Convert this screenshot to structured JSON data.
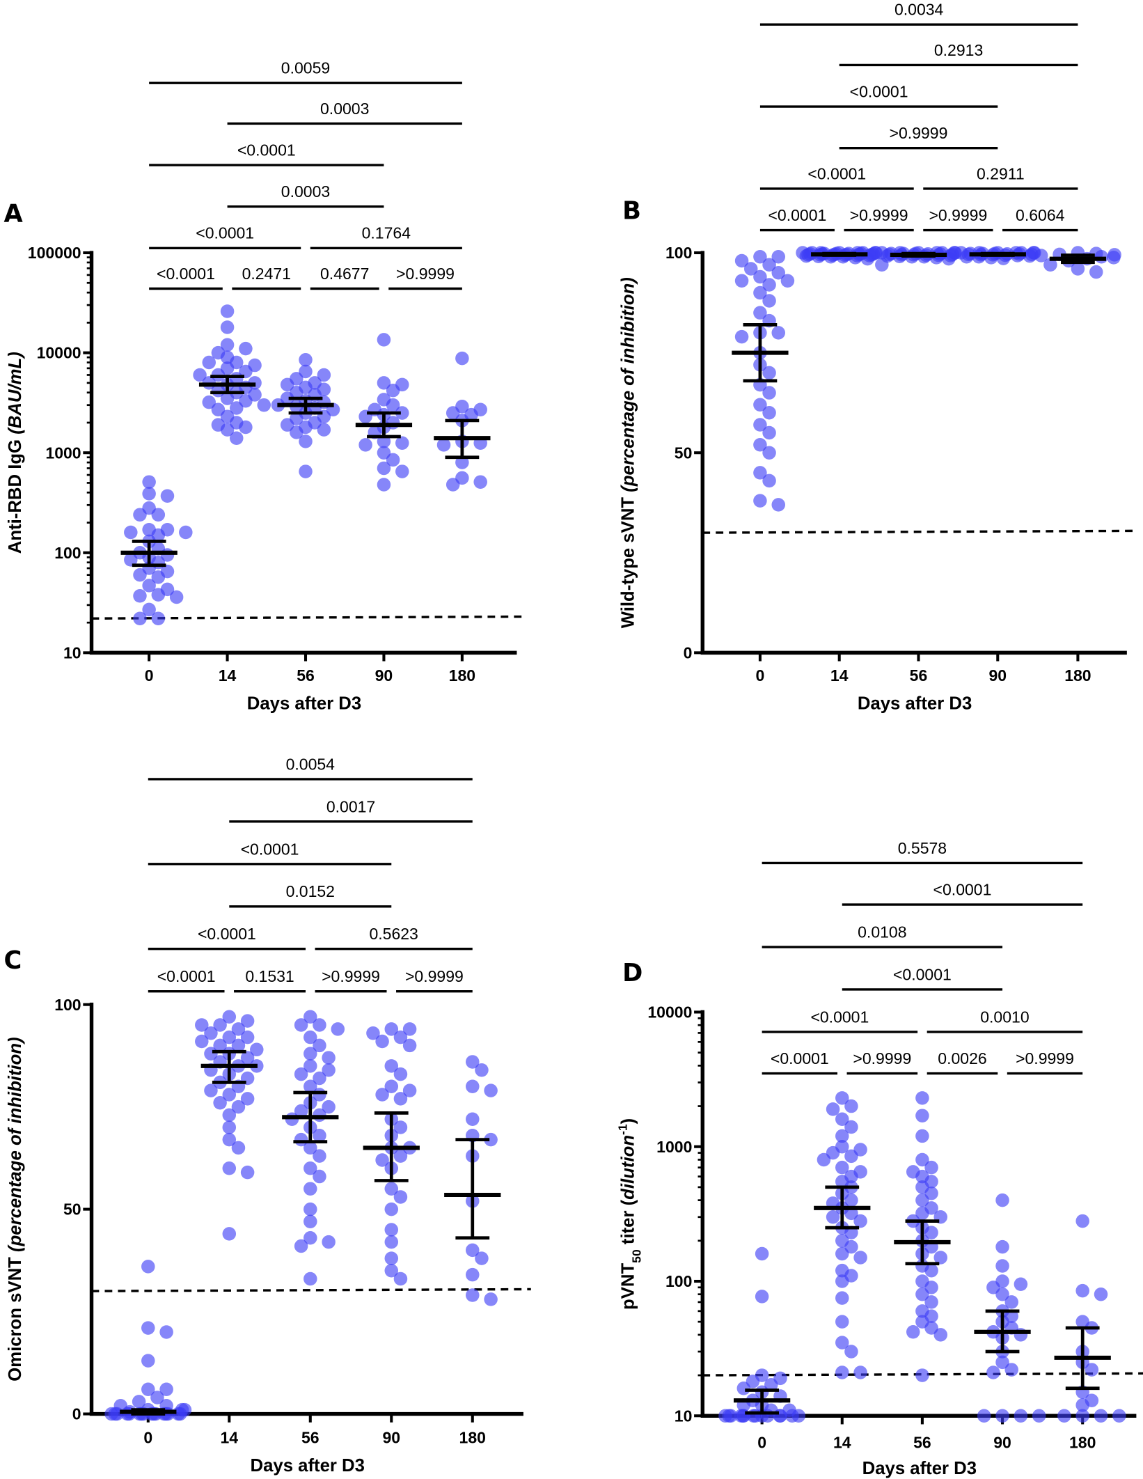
{
  "chart_data": [
    {
      "panel": "A",
      "type": "scatter",
      "xlabel": "Days after D3",
      "ylabel_parts": [
        {
          "text": "Anti-RBD IgG ",
          "style": "normal"
        },
        {
          "text": "(BAU/mL)",
          "style": "italic"
        }
      ],
      "yscale": "log",
      "ylim": [
        10,
        100000
      ],
      "yticks": [
        "10",
        "100",
        "1000",
        "10000",
        "100000"
      ],
      "categories": [
        "0",
        "14",
        "56",
        "90",
        "180"
      ],
      "lod": 22,
      "point_color": "#3b3bf5",
      "groups": [
        {
          "category": "0",
          "mean": 100,
          "ci": [
            75,
            130
          ],
          "values": [
            510,
            390,
            370,
            280,
            240,
            240,
            170,
            170,
            160,
            160,
            150,
            130,
            110,
            100,
            95,
            90,
            85,
            80,
            70,
            65,
            60,
            57,
            47,
            43,
            38,
            37,
            36,
            27,
            22,
            22
          ]
        },
        {
          "category": "14",
          "mean": 4800,
          "ci": [
            4000,
            5800
          ],
          "values": [
            26000,
            18000,
            12000,
            11000,
            10000,
            9000,
            8000,
            8000,
            7500,
            7000,
            6500,
            6000,
            6000,
            5500,
            5000,
            5000,
            4800,
            4500,
            4200,
            4000,
            3800,
            3500,
            3300,
            3200,
            3000,
            2800,
            2700,
            2300,
            2000,
            1900,
            1800,
            1700,
            1400
          ]
        },
        {
          "category": "56",
          "mean": 3000,
          "ci": [
            2500,
            3500
          ],
          "values": [
            8500,
            6500,
            6000,
            5500,
            5000,
            4800,
            4500,
            4300,
            4000,
            3800,
            3500,
            3300,
            3200,
            3000,
            2900,
            2800,
            2700,
            2500,
            2300,
            2200,
            2000,
            1900,
            1800,
            1700,
            1600,
            1300,
            650
          ]
        },
        {
          "category": "90",
          "mean": 1900,
          "ci": [
            1450,
            2500
          ],
          "values": [
            13500,
            5000,
            4800,
            4200,
            3400,
            3000,
            2700,
            2500,
            2400,
            2300,
            2000,
            1800,
            1600,
            1300,
            1250,
            1200,
            1000,
            850,
            700,
            650,
            480
          ]
        },
        {
          "category": "180",
          "mean": 1400,
          "ci": [
            900,
            2100
          ],
          "values": [
            8800,
            2900,
            2700,
            2500,
            2400,
            2100,
            1300,
            1250,
            1200,
            800,
            560,
            510,
            480
          ]
        }
      ],
      "comparisons": [
        [
          {
            "from": 0,
            "to": 4,
            "p": "0.0059"
          }
        ],
        [
          {
            "from": 1,
            "to": 4,
            "p": "0.0003"
          }
        ],
        [
          {
            "from": 0,
            "to": 3,
            "p": "<0.0001"
          }
        ],
        [
          {
            "from": 1,
            "to": 3,
            "p": "0.0003"
          }
        ],
        [
          {
            "from": 0,
            "to": 2,
            "p": "<0.0001"
          },
          {
            "from": 2,
            "to": 4,
            "p": "0.1764"
          }
        ],
        [
          {
            "from": 0,
            "to": 1,
            "p": "<0.0001"
          },
          {
            "from": 1,
            "to": 2,
            "p": "0.2471"
          },
          {
            "from": 2,
            "to": 3,
            "p": "0.4677"
          },
          {
            "from": 3,
            "to": 4,
            "p": ">0.9999"
          }
        ]
      ]
    },
    {
      "panel": "B",
      "type": "scatter",
      "xlabel": "Days after D3",
      "ylabel_parts": [
        {
          "text": "Wild-type sVNT ",
          "style": "normal"
        },
        {
          "text": "(percentage of inhibition)",
          "style": "italic"
        }
      ],
      "yscale": "linear",
      "ylim": [
        0,
        100
      ],
      "yticks": [
        "0",
        "50",
        "100"
      ],
      "categories": [
        "0",
        "14",
        "56",
        "90",
        "180"
      ],
      "lod": 30,
      "point_color": "#3b3bf5",
      "groups": [
        {
          "category": "0",
          "mean": 75,
          "ci": [
            68,
            82
          ],
          "values": [
            99,
            99,
            98,
            97,
            96,
            95,
            94,
            93,
            93,
            92,
            90,
            88,
            85,
            83,
            80,
            80,
            79,
            75,
            72,
            70,
            67,
            65,
            62,
            60,
            57,
            55,
            52,
            50,
            45,
            43,
            38,
            37
          ]
        },
        {
          "category": "14",
          "mean": 99.6,
          "ci": [
            99.4,
            99.8
          ],
          "values": [
            100,
            100,
            100,
            100,
            100,
            100,
            100,
            100,
            99.8,
            99.8,
            99.8,
            99.8,
            99.7,
            99.7,
            99.7,
            99.6,
            99.6,
            99.6,
            99.5,
            99.5,
            99.5,
            99.4,
            99.4,
            99.3,
            99.3,
            99.2,
            99.1,
            99,
            99,
            98.8,
            98.5
          ]
        },
        {
          "category": "56",
          "mean": 99.5,
          "ci": [
            99.2,
            99.8
          ],
          "values": [
            100,
            100,
            100,
            100,
            100,
            100,
            100,
            99.8,
            99.8,
            99.8,
            99.7,
            99.7,
            99.6,
            99.6,
            99.5,
            99.5,
            99.4,
            99.4,
            99.3,
            99.2,
            99.1,
            99,
            99,
            98.8,
            98.5,
            97
          ]
        },
        {
          "category": "90",
          "mean": 99.6,
          "ci": [
            99.4,
            99.8
          ],
          "values": [
            100,
            100,
            100,
            100,
            100,
            100,
            100,
            99.8,
            99.8,
            99.8,
            99.7,
            99.7,
            99.6,
            99.6,
            99.5,
            99.5,
            99.4,
            99.3,
            99.2,
            99,
            99,
            98.8,
            98.6
          ]
        },
        {
          "category": "180",
          "mean": 98.5,
          "ci": [
            97.6,
            99.4
          ],
          "values": [
            100,
            99.8,
            99.6,
            99.5,
            99.3,
            99,
            98.8,
            98.5,
            98,
            97,
            96,
            95.2
          ]
        }
      ],
      "comparisons": [
        [
          {
            "from": 0,
            "to": 4,
            "p": "0.0034"
          }
        ],
        [
          {
            "from": 1,
            "to": 4,
            "p": "0.2913"
          }
        ],
        [
          {
            "from": 0,
            "to": 3,
            "p": "<0.0001"
          }
        ],
        [
          {
            "from": 1,
            "to": 3,
            "p": ">0.9999"
          }
        ],
        [
          {
            "from": 0,
            "to": 2,
            "p": "<0.0001"
          },
          {
            "from": 2,
            "to": 4,
            "p": "0.2911"
          }
        ],
        [
          {
            "from": 0,
            "to": 1,
            "p": "<0.0001"
          },
          {
            "from": 1,
            "to": 2,
            "p": ">0.9999"
          },
          {
            "from": 2,
            "to": 3,
            "p": ">0.9999"
          },
          {
            "from": 3,
            "to": 4,
            "p": "0.6064"
          }
        ]
      ]
    },
    {
      "panel": "C",
      "type": "scatter",
      "xlabel": "Days after D3",
      "ylabel_parts": [
        {
          "text": "Omicron sVNT ",
          "style": "normal"
        },
        {
          "text": "(percentage of inhibition)",
          "style": "italic"
        }
      ],
      "yscale": "linear",
      "ylim": [
        0,
        100
      ],
      "yticks": [
        "0",
        "50",
        "100"
      ],
      "categories": [
        "0",
        "14",
        "56",
        "90",
        "180"
      ],
      "lod": 30,
      "point_color": "#3b3bf5",
      "groups": [
        {
          "category": "0",
          "mean": 0.5,
          "ci": [
            0,
            1
          ],
          "values": [
            36,
            21,
            20,
            13,
            6,
            6,
            4,
            3,
            2,
            2,
            1,
            1,
            1,
            0.5,
            0,
            0,
            0,
            0,
            0,
            0,
            0,
            0,
            0,
            0,
            0,
            0,
            0,
            0,
            0,
            0
          ]
        },
        {
          "category": "14",
          "mean": 85,
          "ci": [
            81,
            88.5
          ],
          "values": [
            97,
            96,
            95,
            95,
            94,
            93,
            92,
            92,
            91,
            90,
            90,
            89,
            88,
            88,
            87,
            86,
            85,
            85,
            84,
            83,
            82,
            81,
            80,
            79,
            78,
            77,
            76,
            75,
            73,
            70,
            67,
            65,
            60,
            59,
            44
          ]
        },
        {
          "category": "56",
          "mean": 72.5,
          "ci": [
            66.5,
            78.5
          ],
          "values": [
            97,
            95,
            95,
            94,
            92,
            90,
            88,
            87,
            85,
            84,
            83,
            82,
            80,
            78,
            76,
            75,
            74,
            73,
            72,
            70,
            68,
            67,
            65,
            63,
            60,
            58,
            55,
            50,
            47,
            43,
            42,
            41,
            33
          ]
        },
        {
          "category": "90",
          "mean": 65,
          "ci": [
            57,
            73.5
          ],
          "values": [
            94,
            94,
            93,
            92,
            91,
            90,
            85,
            83,
            80,
            79,
            78,
            77,
            72,
            70,
            68,
            65,
            65,
            63,
            62,
            60,
            55,
            53,
            50,
            45,
            42,
            38,
            35,
            33
          ]
        },
        {
          "category": "180",
          "mean": 53.5,
          "ci": [
            43,
            67
          ],
          "values": [
            86,
            84,
            80,
            79,
            72,
            68,
            67,
            63,
            52,
            40,
            38,
            34,
            29,
            28
          ]
        }
      ],
      "comparisons": [
        [
          {
            "from": 0,
            "to": 4,
            "p": "0.0054"
          }
        ],
        [
          {
            "from": 1,
            "to": 4,
            "p": "0.0017"
          }
        ],
        [
          {
            "from": 0,
            "to": 3,
            "p": "<0.0001"
          }
        ],
        [
          {
            "from": 1,
            "to": 3,
            "p": "0.0152"
          }
        ],
        [
          {
            "from": 0,
            "to": 2,
            "p": "<0.0001"
          },
          {
            "from": 2,
            "to": 4,
            "p": "0.5623"
          }
        ],
        [
          {
            "from": 0,
            "to": 1,
            "p": "<0.0001"
          },
          {
            "from": 1,
            "to": 2,
            "p": "0.1531"
          },
          {
            "from": 2,
            "to": 3,
            "p": ">0.9999"
          },
          {
            "from": 3,
            "to": 4,
            "p": ">0.9999"
          }
        ]
      ]
    },
    {
      "panel": "D",
      "type": "scatter",
      "xlabel": "Days after D3",
      "ylabel_parts": [
        {
          "text": "pVNT",
          "style": "normal"
        },
        {
          "text": "50",
          "style": "sub"
        },
        {
          "text": " titer (",
          "style": "normal"
        },
        {
          "text": "dilution",
          "style": "italic"
        },
        {
          "text": "-1",
          "style": "sup"
        },
        {
          "text": ")",
          "style": "normal"
        }
      ],
      "yscale": "log",
      "ylim": [
        10,
        10000
      ],
      "yticks": [
        "10",
        "100",
        "1000",
        "10000"
      ],
      "categories": [
        "0",
        "14",
        "56",
        "90",
        "180"
      ],
      "lod": 20,
      "point_color": "#3b3bf5",
      "groups": [
        {
          "category": "0",
          "mean": 13,
          "ci": [
            10.5,
            15.5
          ],
          "values": [
            160,
            77,
            20,
            19,
            18,
            17,
            16,
            15,
            14,
            13,
            12,
            12,
            11,
            11,
            10,
            10,
            10,
            10,
            10,
            10,
            10,
            10,
            10,
            10,
            10,
            10,
            10,
            10
          ]
        },
        {
          "category": "14",
          "mean": 350,
          "ci": [
            250,
            500
          ],
          "values": [
            2300,
            2000,
            1900,
            1600,
            1400,
            1200,
            1000,
            950,
            900,
            850,
            800,
            700,
            650,
            600,
            550,
            500,
            450,
            400,
            380,
            350,
            320,
            300,
            280,
            250,
            230,
            200,
            180,
            160,
            150,
            120,
            110,
            100,
            75,
            50,
            35,
            30,
            21,
            21
          ]
        },
        {
          "category": "56",
          "mean": 195,
          "ci": [
            135,
            280
          ],
          "values": [
            2300,
            1700,
            1200,
            800,
            700,
            650,
            600,
            550,
            500,
            450,
            400,
            350,
            320,
            300,
            280,
            250,
            230,
            200,
            180,
            160,
            150,
            130,
            120,
            100,
            90,
            80,
            70,
            60,
            55,
            50,
            45,
            42,
            40,
            20
          ]
        },
        {
          "category": "90",
          "mean": 42,
          "ci": [
            30,
            60
          ],
          "values": [
            400,
            180,
            130,
            100,
            95,
            90,
            80,
            70,
            60,
            55,
            50,
            45,
            42,
            40,
            38,
            30,
            25,
            22,
            21,
            10,
            10,
            10,
            10
          ]
        },
        {
          "category": "180",
          "mean": 27,
          "ci": [
            16,
            45
          ],
          "values": [
            280,
            85,
            80,
            50,
            45,
            30,
            25,
            22,
            15,
            13,
            12,
            10,
            10,
            10,
            10
          ]
        }
      ],
      "comparisons": [
        [
          {
            "from": 0,
            "to": 4,
            "p": "0.5578"
          }
        ],
        [
          {
            "from": 1,
            "to": 4,
            "p": "<0.0001"
          }
        ],
        [
          {
            "from": 0,
            "to": 3,
            "p": "0.0108"
          }
        ],
        [
          {
            "from": 1,
            "to": 3,
            "p": "<0.0001"
          }
        ],
        [
          {
            "from": 0,
            "to": 2,
            "p": "<0.0001"
          },
          {
            "from": 2,
            "to": 4,
            "p": "0.0010"
          }
        ],
        [
          {
            "from": 0,
            "to": 1,
            "p": "<0.0001"
          },
          {
            "from": 1,
            "to": 2,
            "p": ">0.9999"
          },
          {
            "from": 2,
            "to": 3,
            "p": "0.0026"
          },
          {
            "from": 3,
            "to": 4,
            "p": ">0.9999"
          }
        ]
      ]
    }
  ]
}
